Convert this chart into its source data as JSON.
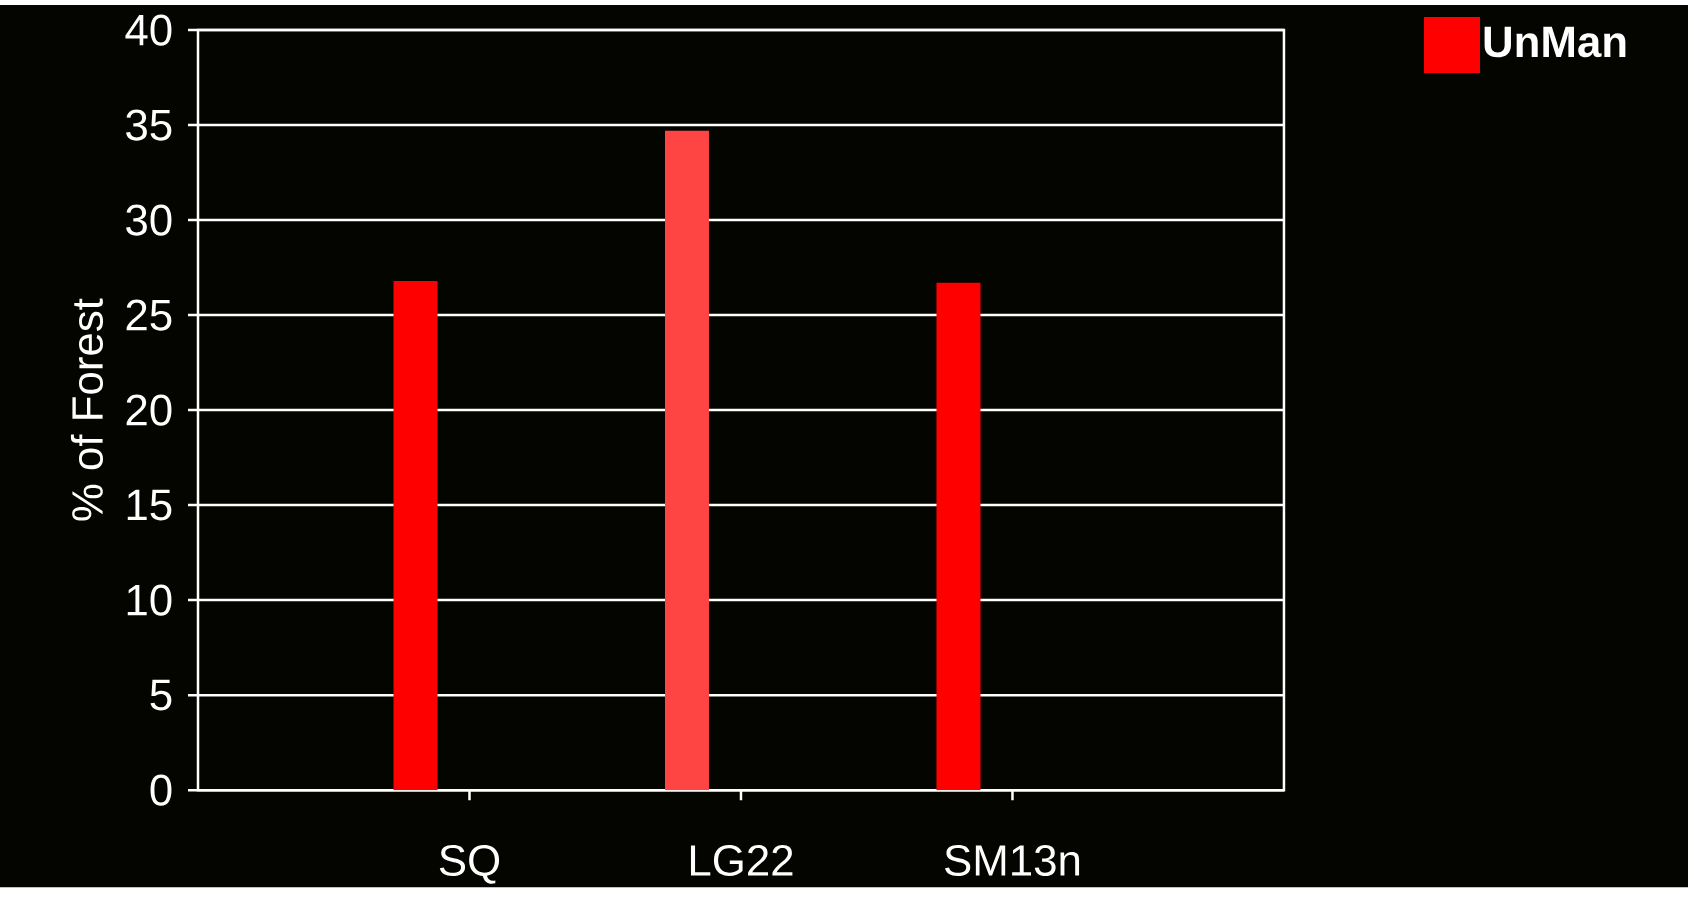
{
  "chart_data": {
    "type": "bar",
    "ylabel": "% of Forest",
    "categories": [
      "SQ",
      "LG22",
      "SM13n"
    ],
    "series": [
      {
        "name": "UnMan",
        "color": "#ff0000",
        "colors": [
          "#ff0000",
          "#ff4444",
          "#ff0000"
        ],
        "values": [
          26.8,
          34.7,
          26.7
        ]
      }
    ],
    "ylim": [
      0,
      40
    ],
    "yticks": [
      0,
      5,
      10,
      15,
      20,
      25,
      30,
      35,
      40
    ],
    "grid": "y",
    "legend": "top right"
  }
}
